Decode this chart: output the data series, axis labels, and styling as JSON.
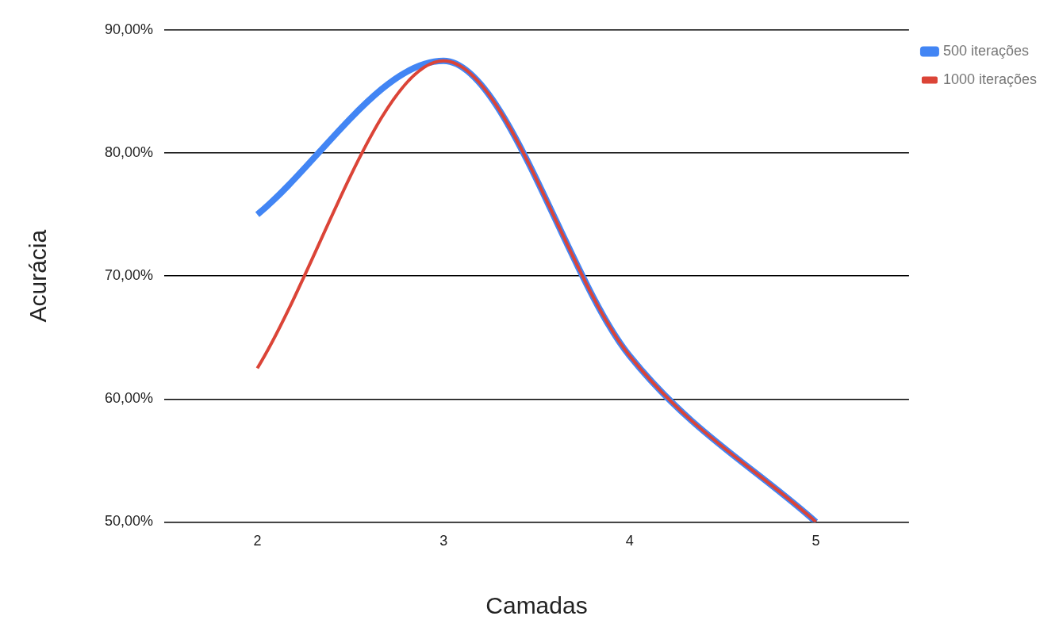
{
  "chart_data": {
    "type": "line",
    "xlabel": "Camadas",
    "ylabel": "Acurácia",
    "categories": [
      "2",
      "3",
      "4",
      "5"
    ],
    "series": [
      {
        "name": "500 iterações",
        "color": "#4285f4",
        "values": [
          75,
          87.5,
          63.5,
          50
        ]
      },
      {
        "name": "1000 iterações",
        "color": "#db4437",
        "values": [
          62.5,
          87.5,
          63.5,
          50
        ]
      }
    ],
    "ylim": [
      50,
      90
    ],
    "yticks": [
      {
        "value": 50,
        "label": "50,00%"
      },
      {
        "value": 60,
        "label": "60,00%"
      },
      {
        "value": 70,
        "label": "70,00%"
      },
      {
        "value": 80,
        "label": "80,00%"
      },
      {
        "value": 90,
        "label": "90,00%"
      }
    ],
    "grid": "y",
    "legend": "top right",
    "marker": "none",
    "line_style": "solid"
  }
}
